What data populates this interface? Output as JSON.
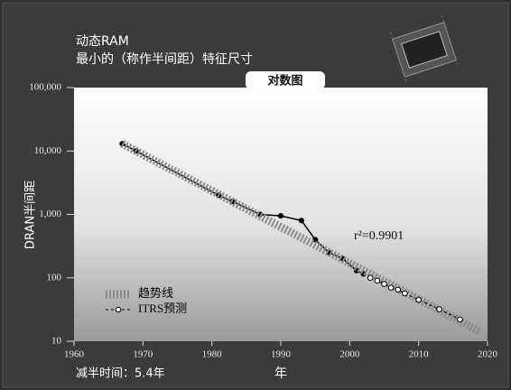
{
  "chart_data": {
    "type": "line",
    "title": "动态RAM",
    "subtitle": "最小的（称作半间距）特征尺寸",
    "scale_label": "对数图",
    "x_label": "年",
    "y_label": "DRAN半间距",
    "annotations": [
      "r²=0.9901",
      "减半时间：5.4年"
    ],
    "log_y": true,
    "legend": "lower left",
    "xlim": [
      1960,
      2020
    ],
    "ylim": [
      10,
      100000
    ],
    "xticks": [
      1960,
      1970,
      1980,
      1990,
      2000,
      2010,
      2020
    ],
    "yticks": [
      10,
      100,
      {
        "value": 1000,
        "label": "1,000"
      },
      {
        "value": 10000,
        "label": "10,000"
      },
      {
        "value": 100000,
        "label": "100,000"
      }
    ],
    "series": [
      {
        "color": "#000000",
        "style": "solid",
        "x": [
          1967,
          1969,
          1981,
          1983,
          1987,
          1990,
          1993,
          1995,
          1997,
          1999,
          2001,
          2002
        ],
        "values": [
          13000,
          10000,
          2000,
          1600,
          1000,
          950,
          800,
          400,
          250,
          200,
          130,
          115
        ]
      },
      {
        "name": "趋势线",
        "color": "#8a8a8a",
        "style": "hatched",
        "x": [
          1967,
          2019
        ],
        "values": [
          13000,
          14
        ]
      },
      {
        "name": "ITRS预测",
        "color": "#000000",
        "style": "dashed",
        "x": [
          2003,
          2004,
          2005,
          2006,
          2007,
          2008,
          2010,
          2013,
          2016
        ],
        "values": [
          100,
          90,
          80,
          70,
          65,
          57,
          45,
          32,
          22
        ]
      }
    ]
  }
}
